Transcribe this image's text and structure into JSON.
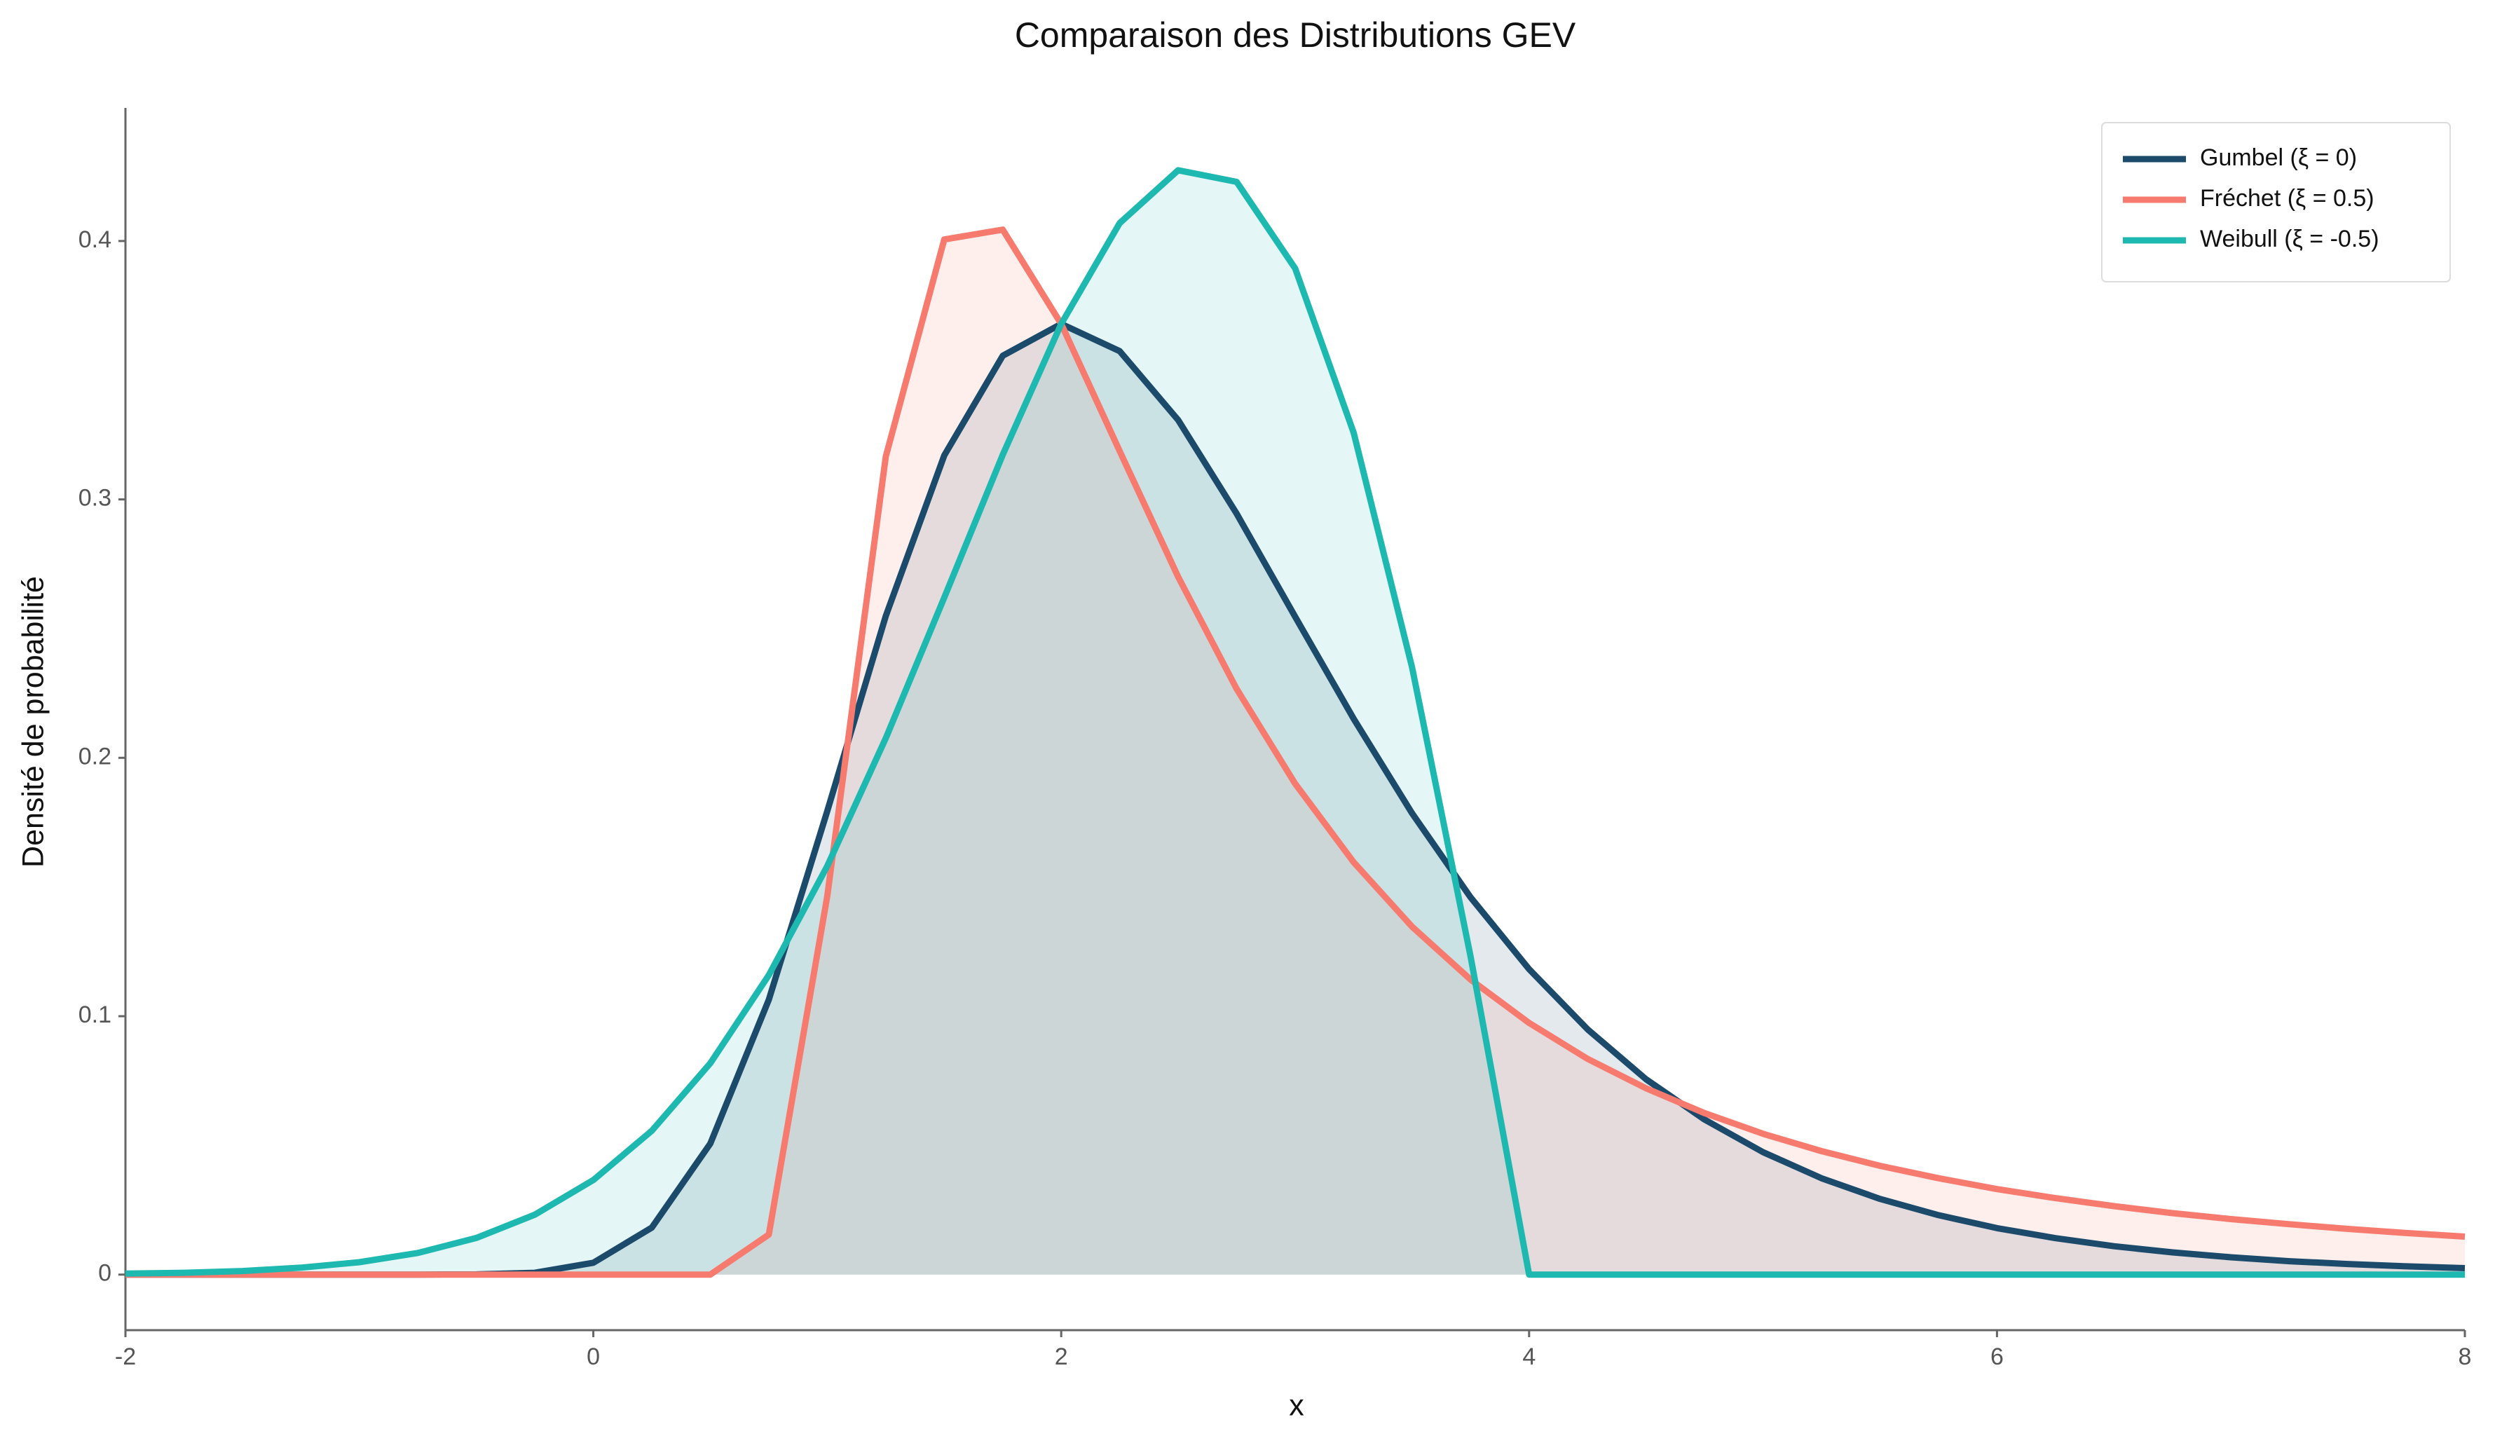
{
  "chart_data": {
    "type": "line",
    "title": "Comparaison des Distributions GEV",
    "xlabel": "x",
    "ylabel": "Densité de probabilité",
    "x": [
      -2,
      -1.75,
      -1.5,
      -1.25,
      -1,
      -0.75,
      -0.5,
      -0.25,
      0,
      0.25,
      0.5,
      0.75,
      1,
      1.25,
      1.5,
      1.75,
      2,
      2.25,
      2.5,
      2.75,
      3,
      3.25,
      3.5,
      3.75,
      4,
      4.25,
      4.5,
      4.75,
      5,
      5.25,
      5.5,
      5.75,
      6,
      6.25,
      6.5,
      6.75,
      7,
      7.25,
      7.5,
      7.75,
      8
    ],
    "series": [
      {
        "name": "Gumbel (ξ = 0)",
        "color": "#1b4a6b",
        "values": [
          0,
          0,
          0,
          0,
          0,
          0,
          0.0001,
          0.0007,
          0.0046,
          0.0182,
          0.0507,
          0.1064,
          0.1794,
          0.2549,
          0.317,
          0.3556,
          0.3679,
          0.3574,
          0.3307,
          0.2945,
          0.2546,
          0.2151,
          0.1785,
          0.146,
          0.1182,
          0.0949,
          0.0756,
          0.06,
          0.0474,
          0.0373,
          0.0293,
          0.023,
          0.018,
          0.0141,
          0.011,
          0.0086,
          0.0067,
          0.0052,
          0.0041,
          0.0032,
          0.0025
        ]
      },
      {
        "name": "Fréchet (ξ = 0.5)",
        "color": "#f67b6e",
        "values": [
          0,
          0,
          0,
          0,
          0,
          0,
          0,
          0,
          0,
          0,
          0,
          0.0155,
          0.1465,
          0.3166,
          0.4006,
          0.4044,
          0.3679,
          0.3187,
          0.27,
          0.2267,
          0.19,
          0.1596,
          0.1346,
          0.1142,
          0.0974,
          0.0835,
          0.0721,
          0.0625,
          0.0545,
          0.0478,
          0.0421,
          0.0373,
          0.0331,
          0.0296,
          0.0265,
          0.0238,
          0.0215,
          0.0195,
          0.0177,
          0.0161,
          0.0147
        ]
      },
      {
        "name": "Weibull (ξ = -0.5)",
        "color": "#1db8b0",
        "values": [
          0.0004,
          0.0007,
          0.0014,
          0.0027,
          0.0048,
          0.0084,
          0.0142,
          0.0232,
          0.0366,
          0.0557,
          0.0818,
          0.1159,
          0.1581,
          0.2076,
          0.262,
          0.3173,
          0.3679,
          0.4069,
          0.4274,
          0.4229,
          0.3894,
          0.3258,
          0.2349,
          0.1231,
          0,
          0,
          0,
          0,
          0,
          0,
          0,
          0,
          0,
          0,
          0,
          0,
          0,
          0,
          0,
          0,
          0
        ]
      }
    ],
    "xlim": [
      -2,
      8
    ],
    "xticks": [
      -2,
      0,
      2,
      4,
      6,
      8
    ],
    "ylim": [
      -0.0215,
      0.4515
    ],
    "yticks": [
      0.0,
      0.1,
      0.2,
      0.3,
      0.4
    ],
    "fill": true,
    "grid": false,
    "legend": "upper right"
  }
}
